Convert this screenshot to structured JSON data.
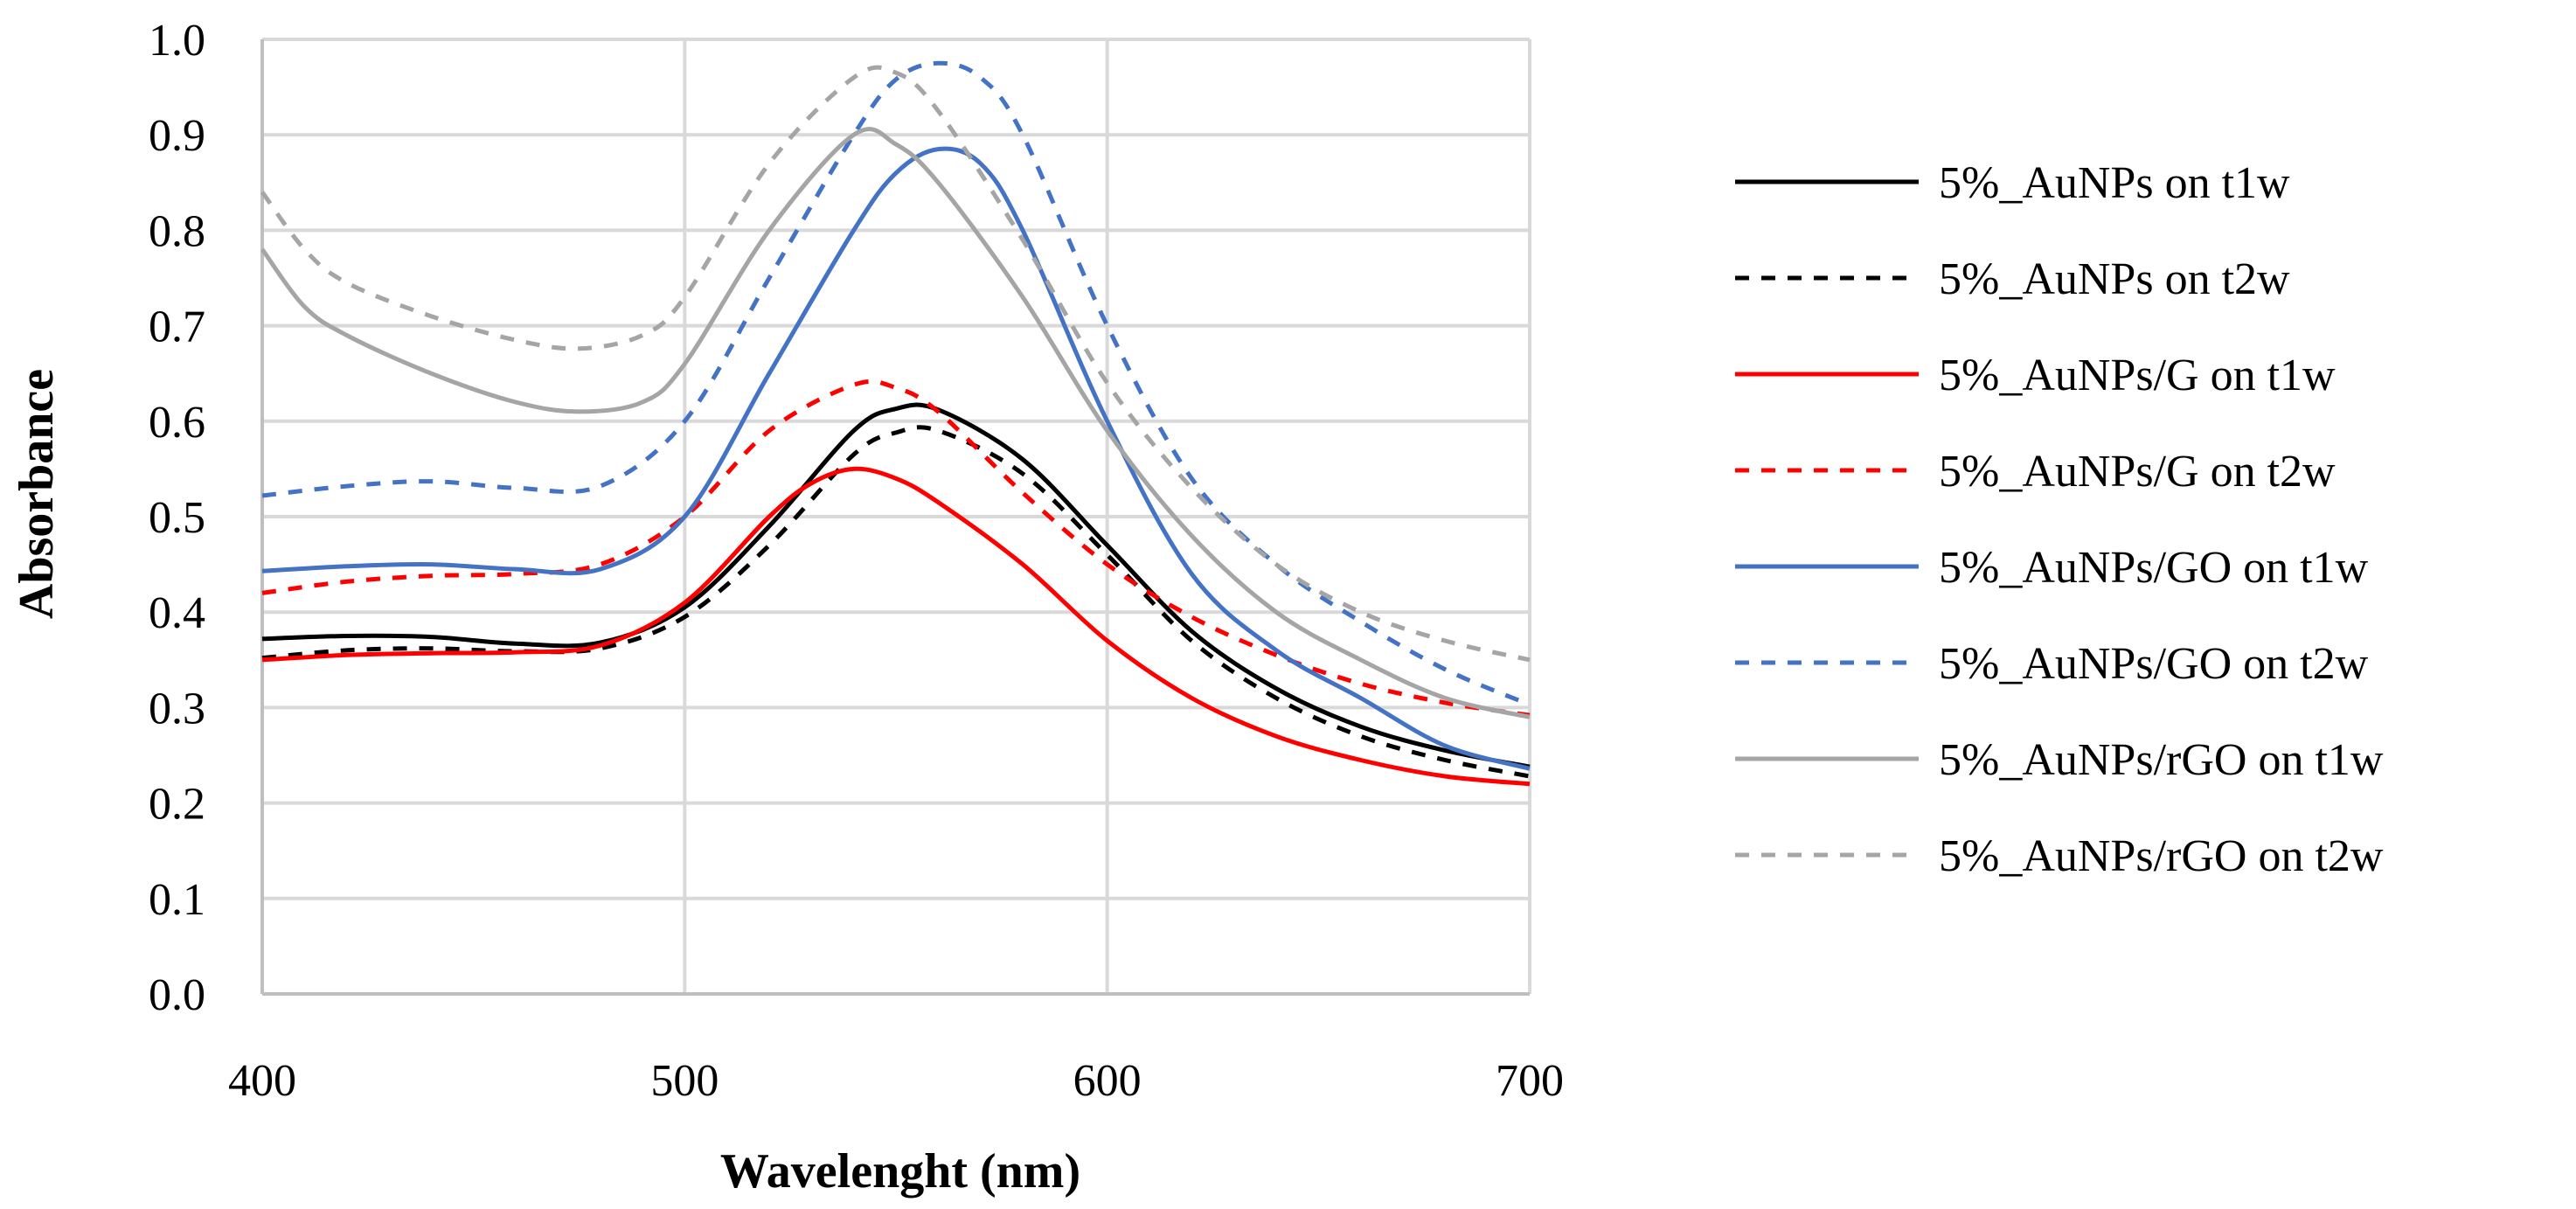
{
  "chart_data": {
    "type": "line",
    "title": "",
    "xlabel": "Wavelenght (nm)",
    "ylabel": "Absorbance",
    "xlim": [
      400,
      700
    ],
    "ylim": [
      0.0,
      1.0
    ],
    "xticks": [
      "400",
      "500",
      "600",
      "700"
    ],
    "xtick_values": [
      400,
      500,
      600,
      700
    ],
    "yticks": [
      "0.0",
      "0.1",
      "0.2",
      "0.3",
      "0.4",
      "0.5",
      "0.6",
      "0.7",
      "0.8",
      "0.9",
      "1.0"
    ],
    "ytick_values": [
      0.0,
      0.1,
      0.2,
      0.3,
      0.4,
      0.5,
      0.6,
      0.7,
      0.8,
      0.9,
      1.0
    ],
    "grid": true,
    "legend_position": "right",
    "series": [
      {
        "name": "5%_AuNPs on t1w",
        "color": "#000000",
        "dash": "solid",
        "x": [
          400,
          420,
          440,
          460,
          480,
          500,
          520,
          540,
          550,
          560,
          580,
          600,
          620,
          640,
          660,
          680,
          700
        ],
        "y": [
          0.372,
          0.375,
          0.374,
          0.367,
          0.368,
          0.405,
          0.49,
          0.59,
          0.613,
          0.612,
          0.56,
          0.47,
          0.38,
          0.32,
          0.28,
          0.255,
          0.238
        ]
      },
      {
        "name": "5%_AuNPs on t2w",
        "color": "#000000",
        "dash": "dashed",
        "x": [
          400,
          420,
          440,
          460,
          480,
          500,
          520,
          540,
          550,
          560,
          580,
          600,
          620,
          640,
          660,
          680,
          700
        ],
        "y": [
          0.352,
          0.36,
          0.362,
          0.359,
          0.362,
          0.395,
          0.47,
          0.565,
          0.588,
          0.59,
          0.545,
          0.46,
          0.37,
          0.31,
          0.27,
          0.245,
          0.228
        ]
      },
      {
        "name": "5%_AuNPs/G on t1w",
        "color": "#ff0000",
        "dash": "solid",
        "x": [
          400,
          420,
          440,
          460,
          480,
          500,
          520,
          530,
          540,
          550,
          560,
          580,
          600,
          620,
          640,
          660,
          680,
          700
        ],
        "y": [
          0.35,
          0.355,
          0.357,
          0.358,
          0.365,
          0.41,
          0.5,
          0.535,
          0.55,
          0.54,
          0.515,
          0.45,
          0.37,
          0.31,
          0.27,
          0.245,
          0.228,
          0.22
        ]
      },
      {
        "name": "5%_AuNPs/G on t2w",
        "color": "#ff0000",
        "dash": "dashed",
        "x": [
          400,
          420,
          440,
          460,
          480,
          500,
          520,
          540,
          550,
          560,
          580,
          600,
          620,
          640,
          660,
          680,
          700
        ],
        "y": [
          0.42,
          0.432,
          0.438,
          0.44,
          0.45,
          0.5,
          0.59,
          0.638,
          0.635,
          0.61,
          0.525,
          0.45,
          0.395,
          0.355,
          0.325,
          0.305,
          0.292
        ]
      },
      {
        "name": "5%_AuNPs/GO on t1w",
        "color": "#4472c4",
        "dash": "solid",
        "x": [
          400,
          420,
          440,
          460,
          480,
          500,
          520,
          540,
          550,
          560,
          570,
          580,
          600,
          620,
          640,
          660,
          680,
          700
        ],
        "y": [
          0.443,
          0.448,
          0.45,
          0.445,
          0.445,
          0.5,
          0.65,
          0.8,
          0.86,
          0.885,
          0.87,
          0.8,
          0.6,
          0.44,
          0.36,
          0.31,
          0.26,
          0.236
        ]
      },
      {
        "name": "5%_AuNPs/GO on t2w",
        "color": "#4472c4",
        "dash": "dashed",
        "x": [
          400,
          420,
          440,
          460,
          480,
          500,
          520,
          540,
          550,
          560,
          570,
          580,
          600,
          620,
          640,
          660,
          680,
          700
        ],
        "y": [
          0.522,
          0.532,
          0.537,
          0.53,
          0.532,
          0.6,
          0.75,
          0.9,
          0.958,
          0.975,
          0.96,
          0.9,
          0.7,
          0.54,
          0.45,
          0.39,
          0.34,
          0.303
        ]
      },
      {
        "name": "5%_AuNPs/rGO on t1w",
        "color": "#a5a5a5",
        "dash": "solid",
        "x": [
          400,
          410,
          420,
          440,
          460,
          475,
          490,
          500,
          520,
          540,
          550,
          560,
          580,
          600,
          620,
          640,
          660,
          680,
          700
        ],
        "y": [
          0.78,
          0.72,
          0.69,
          0.65,
          0.62,
          0.61,
          0.62,
          0.66,
          0.8,
          0.9,
          0.89,
          0.85,
          0.73,
          0.59,
          0.48,
          0.4,
          0.35,
          0.31,
          0.29
        ]
      },
      {
        "name": "5%_AuNPs/rGO on t2w",
        "color": "#a5a5a5",
        "dash": "dashed",
        "x": [
          400,
          410,
          420,
          440,
          460,
          475,
          490,
          500,
          520,
          540,
          550,
          560,
          580,
          600,
          620,
          640,
          660,
          680,
          700
        ],
        "y": [
          0.84,
          0.78,
          0.745,
          0.71,
          0.685,
          0.676,
          0.69,
          0.73,
          0.87,
          0.96,
          0.965,
          0.925,
          0.79,
          0.64,
          0.53,
          0.45,
          0.4,
          0.37,
          0.35
        ]
      }
    ]
  }
}
